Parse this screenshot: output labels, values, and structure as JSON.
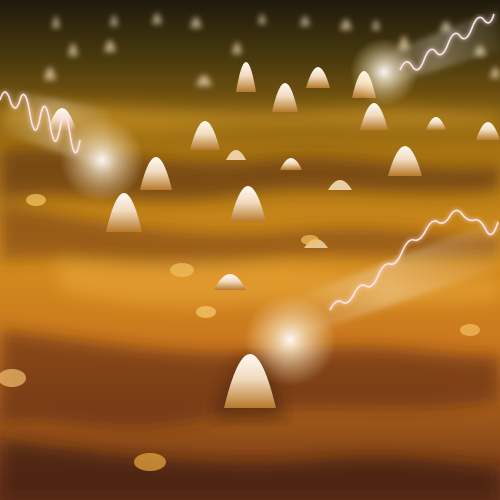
{
  "image": {
    "subject": "3d-surface-spikes-with-light-waves",
    "colors": {
      "sky_top": "#1c1a0e",
      "far": "#6b5012",
      "mid": "#c98a14",
      "near_light": "#e8a233",
      "near_dark": "#5a2a10",
      "spike_tip": "#fbf5ee",
      "spike_body": "#e5c48e",
      "wave_glow": "#ffffff",
      "wave_line": "#ffd7dc"
    }
  }
}
